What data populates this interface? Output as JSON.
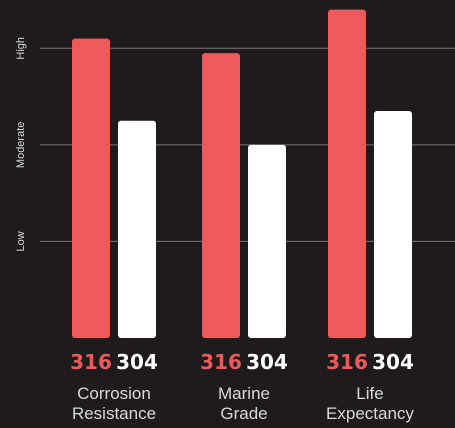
{
  "chart_data": {
    "type": "bar",
    "categories": [
      [
        "Corrosion",
        "Resistance"
      ],
      [
        "Marine",
        "Grade"
      ],
      [
        "Life",
        "Expectancy"
      ]
    ],
    "series": [
      {
        "name": "316",
        "values": [
          3.1,
          2.95,
          3.4
        ]
      },
      {
        "name": "304",
        "values": [
          2.25,
          2.0,
          2.35
        ]
      }
    ],
    "yticks": [
      {
        "value": 1,
        "label": "Low"
      },
      {
        "value": 2,
        "label": "Moderate"
      },
      {
        "value": 3,
        "label": "High"
      }
    ],
    "ylim": [
      0,
      3.5
    ],
    "grid": true,
    "title": "",
    "xlabel": "",
    "ylabel": ""
  },
  "colors": {
    "background": "#1f1b1c",
    "series_316": "#ee5a5b",
    "series_304": "#ffffff",
    "grid": "#7a7576",
    "text": "#d9d9d9"
  }
}
